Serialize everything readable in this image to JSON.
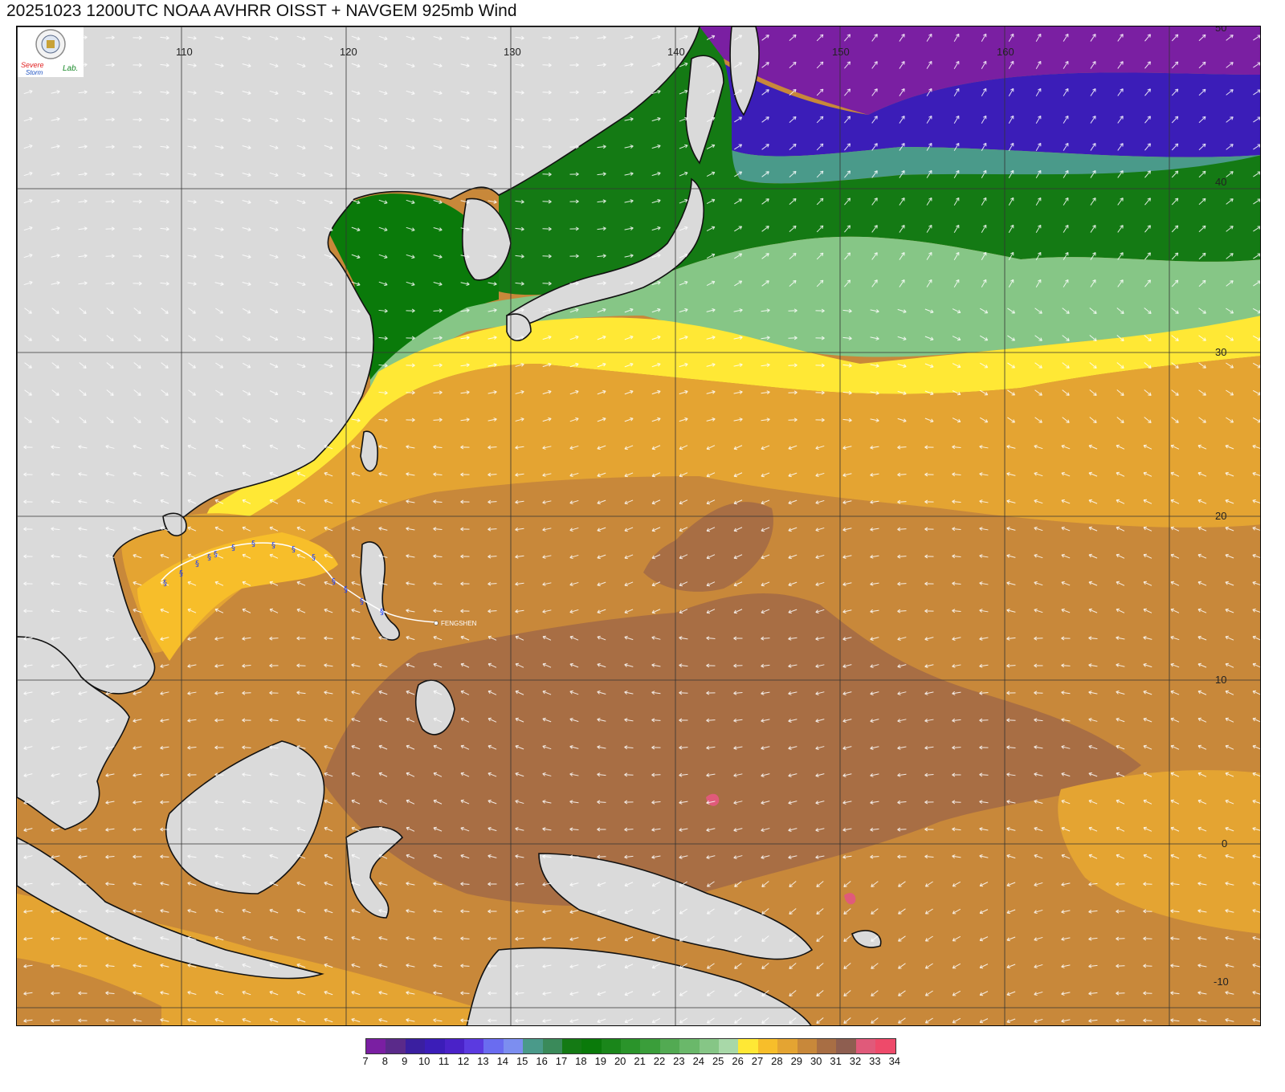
{
  "title": "20251023 1200UTC NOAA AVHRR OISST + NAVGEM 925mb Wind",
  "logo": {
    "text_top": "Severe",
    "text_bottom": "Storm",
    "text_side": "Lab.",
    "colors": [
      "#e02020",
      "#1a4fc0",
      "#1a8a2a"
    ]
  },
  "map": {
    "lon_ticks": [
      "110",
      "120",
      "130",
      "140",
      "150",
      "160"
    ],
    "lat_ticks": [
      "50",
      "40",
      "30",
      "20",
      "10",
      "0",
      "-10"
    ],
    "storm": {
      "name": "FENGSHEN",
      "track_color": "#ffffff",
      "symbol_color": "#1a3cff"
    }
  },
  "legend": {
    "labels": [
      "7",
      "8",
      "9",
      "10",
      "11",
      "12",
      "13",
      "14",
      "15",
      "16",
      "17",
      "18",
      "19",
      "20",
      "21",
      "22",
      "23",
      "24",
      "25",
      "26",
      "27",
      "28",
      "29",
      "30",
      "31",
      "32",
      "33",
      "34"
    ],
    "colors": [
      "#7a1fa2",
      "#5a2a8a",
      "#3a1fa0",
      "#3b1db8",
      "#4a22c8",
      "#5b3ae0",
      "#6a6cf0",
      "#7c8ef0",
      "#4a9a8a",
      "#3a8a5a",
      "#147a14",
      "#0a7a0a",
      "#1a861a",
      "#2a942a",
      "#3a9e3a",
      "#52aa52",
      "#6ab86a",
      "#86c686",
      "#a8d8a8",
      "#ffe835",
      "#f7be2a",
      "#e4a432",
      "#c8883a",
      "#a86e44",
      "#8e5e50",
      "#e05a7a",
      "#ee4a6a",
      "#d83040"
    ]
  }
}
